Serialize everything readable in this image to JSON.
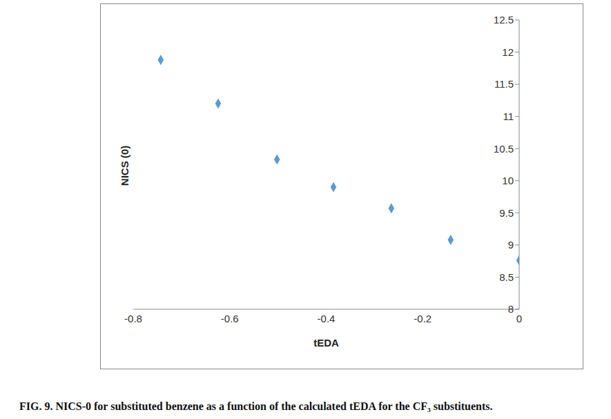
{
  "chart_data": {
    "type": "scatter",
    "caption": "FIG. 9. NICS-0 for substituted benzene as a function of the calculated tEDA for the CF₃ substituents.",
    "x_label": "tEDA",
    "y_label": "NICS (0)",
    "x": [
      -0.743,
      -0.624,
      -0.502,
      -0.385,
      -0.265,
      -0.142,
      0
    ],
    "values": [
      11.88,
      11.2,
      10.33,
      9.9,
      9.57,
      9.08,
      8.76
    ],
    "color": "#5b9bd5",
    "marker": "diamond",
    "xlim": [
      -0.8,
      0
    ],
    "xticks": [
      -0.8,
      -0.6,
      -0.4,
      -0.2,
      0
    ],
    "ylim": [
      8,
      12.5
    ],
    "yticks": [
      8,
      8.5,
      9,
      9.5,
      10,
      10.5,
      11,
      11.5,
      12,
      12.5
    ],
    "grid": false
  }
}
